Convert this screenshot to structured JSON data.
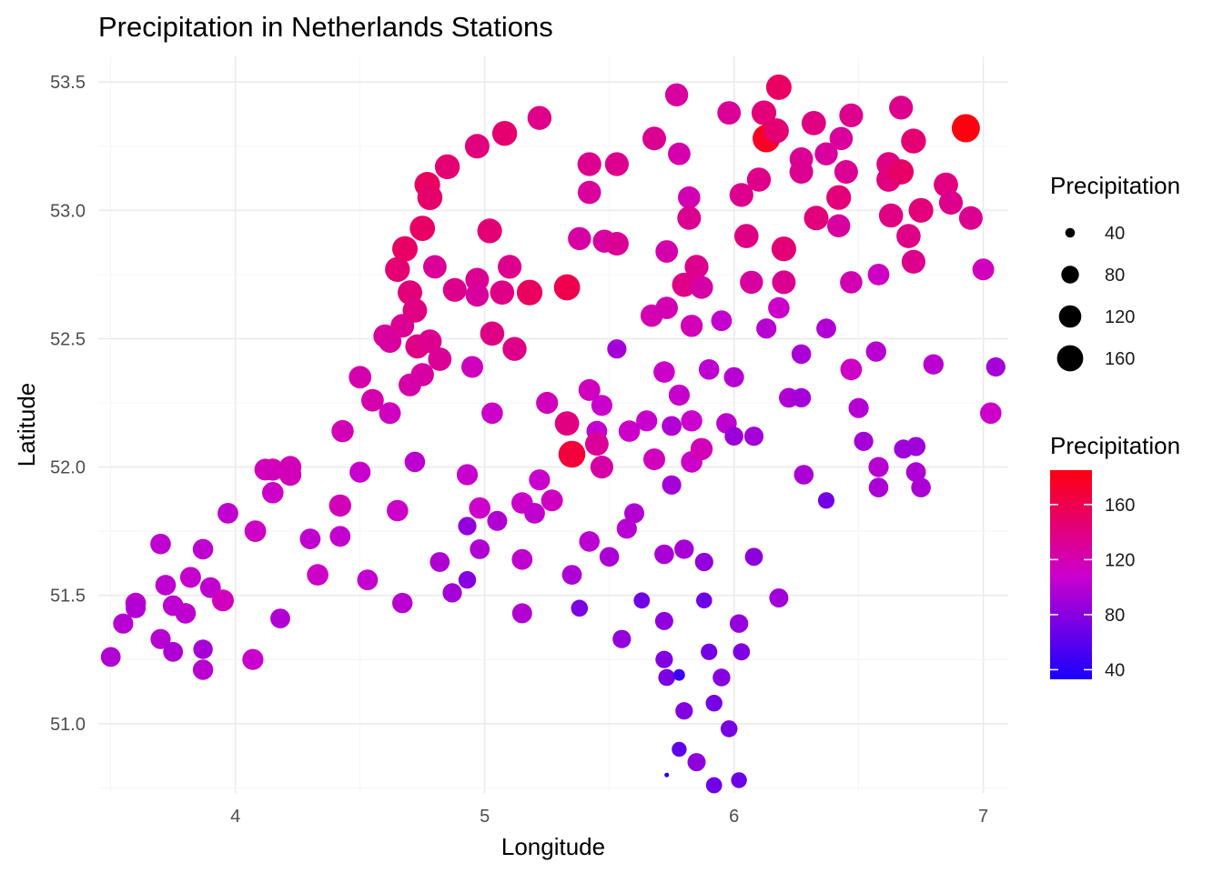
{
  "chart_data": {
    "type": "scatter",
    "title": "Precipitation in Netherlands Stations",
    "xlabel": "Longitude",
    "ylabel": "Latitude",
    "xlim": [
      3.45,
      7.1
    ],
    "ylim": [
      50.73,
      53.6
    ],
    "x_ticks": [
      "4",
      "5",
      "6",
      "7"
    ],
    "x_tick_values": [
      4,
      5,
      6,
      7
    ],
    "y_ticks": [
      "51.0",
      "51.5",
      "52.0",
      "52.5",
      "53.0",
      "53.5"
    ],
    "y_tick_values": [
      51.0,
      51.5,
      52.0,
      52.5,
      53.0,
      53.5
    ],
    "grid": true,
    "legend_position": "right",
    "size_legend": {
      "title": "Precipitation",
      "labels": [
        "40",
        "80",
        "120",
        "160"
      ],
      "values": [
        40,
        80,
        120,
        160
      ]
    },
    "color_legend": {
      "title": "Precipitation",
      "labels": [
        "40",
        "80",
        "120",
        "160"
      ],
      "values": [
        40,
        80,
        120,
        160
      ],
      "range": [
        33,
        185
      ],
      "low_color": "#1a00ff",
      "high_color": "#ff0010"
    },
    "points": [
      [
        3.5,
        51.26,
        97
      ],
      [
        3.55,
        51.39,
        100
      ],
      [
        3.6,
        51.47,
        102
      ],
      [
        3.6,
        51.45,
        98
      ],
      [
        3.7,
        51.33,
        100
      ],
      [
        3.7,
        51.7,
        103
      ],
      [
        3.72,
        51.54,
        103
      ],
      [
        3.75,
        51.28,
        96
      ],
      [
        3.75,
        51.46,
        103
      ],
      [
        3.8,
        51.43,
        103
      ],
      [
        3.82,
        51.57,
        106
      ],
      [
        3.87,
        51.29,
        93
      ],
      [
        3.87,
        51.21,
        101
      ],
      [
        3.87,
        51.68,
        103
      ],
      [
        3.9,
        51.53,
        104
      ],
      [
        3.95,
        51.48,
        115
      ],
      [
        3.97,
        51.82,
        104
      ],
      [
        4.07,
        51.25,
        108
      ],
      [
        4.08,
        51.75,
        112
      ],
      [
        4.12,
        51.99,
        115
      ],
      [
        4.15,
        51.99,
        116
      ],
      [
        4.15,
        51.9,
        110
      ],
      [
        4.18,
        51.41,
        97
      ],
      [
        4.22,
        52.0,
        118
      ],
      [
        4.22,
        51.97,
        117
      ],
      [
        4.3,
        51.72,
        104
      ],
      [
        4.33,
        51.58,
        111
      ],
      [
        4.42,
        51.85,
        118
      ],
      [
        4.42,
        51.73,
        105
      ],
      [
        4.43,
        52.14,
        117
      ],
      [
        4.5,
        51.98,
        107
      ],
      [
        4.5,
        52.35,
        122
      ],
      [
        4.53,
        51.56,
        105
      ],
      [
        4.55,
        52.26,
        121
      ],
      [
        4.6,
        52.51,
        128
      ],
      [
        4.62,
        52.49,
        127
      ],
      [
        4.62,
        52.21,
        114
      ],
      [
        4.65,
        51.83,
        110
      ],
      [
        4.65,
        52.77,
        145
      ],
      [
        4.67,
        51.47,
        101
      ],
      [
        4.67,
        52.55,
        132
      ],
      [
        4.68,
        52.85,
        151
      ],
      [
        4.7,
        52.68,
        142
      ],
      [
        4.7,
        52.32,
        123
      ],
      [
        4.72,
        52.02,
        102
      ],
      [
        4.72,
        52.61,
        139
      ],
      [
        4.73,
        52.47,
        138
      ],
      [
        4.75,
        52.93,
        150
      ],
      [
        4.75,
        52.36,
        126
      ],
      [
        4.77,
        53.1,
        153
      ],
      [
        4.78,
        53.05,
        148
      ],
      [
        4.78,
        52.49,
        133
      ],
      [
        4.8,
        52.78,
        130
      ],
      [
        4.82,
        52.42,
        131
      ],
      [
        4.82,
        51.63,
        97
      ],
      [
        4.85,
        53.17,
        145
      ],
      [
        4.88,
        52.69,
        135
      ],
      [
        4.87,
        51.51,
        92
      ],
      [
        4.93,
        51.97,
        107
      ],
      [
        4.93,
        51.77,
        85
      ],
      [
        4.93,
        51.56,
        80
      ],
      [
        4.95,
        52.39,
        115
      ],
      [
        4.97,
        53.25,
        141
      ],
      [
        4.97,
        52.73,
        132
      ],
      [
        4.98,
        51.84,
        110
      ],
      [
        4.98,
        51.68,
        97
      ],
      [
        4.97,
        52.67,
        127
      ],
      [
        5.02,
        52.92,
        144
      ],
      [
        5.03,
        52.52,
        138
      ],
      [
        5.03,
        52.21,
        110
      ],
      [
        5.05,
        51.79,
        98
      ],
      [
        5.07,
        52.68,
        137
      ],
      [
        5.08,
        53.3,
        146
      ],
      [
        5.1,
        52.78,
        135
      ],
      [
        5.12,
        52.46,
        136
      ],
      [
        5.15,
        51.86,
        110
      ],
      [
        5.15,
        51.64,
        104
      ],
      [
        5.15,
        51.43,
        98
      ],
      [
        5.18,
        52.68,
        153
      ],
      [
        5.2,
        51.82,
        104
      ],
      [
        5.22,
        53.36,
        136
      ],
      [
        5.22,
        51.95,
        108
      ],
      [
        5.25,
        52.25,
        116
      ],
      [
        5.27,
        51.87,
        114
      ],
      [
        5.33,
        52.7,
        160
      ],
      [
        5.33,
        52.17,
        140
      ],
      [
        5.35,
        52.05,
        168
      ],
      [
        5.35,
        51.58,
        96
      ],
      [
        5.38,
        52.89,
        126
      ],
      [
        5.38,
        51.45,
        75
      ],
      [
        5.42,
        53.18,
        134
      ],
      [
        5.42,
        53.07,
        128
      ],
      [
        5.42,
        52.3,
        115
      ],
      [
        5.42,
        51.71,
        102
      ],
      [
        5.45,
        52.14,
        105
      ],
      [
        5.45,
        52.09,
        130
      ],
      [
        5.47,
        52.24,
        108
      ],
      [
        5.47,
        52.0,
        124
      ],
      [
        5.48,
        52.88,
        126
      ],
      [
        5.5,
        51.65,
        95
      ],
      [
        5.53,
        52.87,
        132
      ],
      [
        5.53,
        53.18,
        134
      ],
      [
        5.53,
        52.46,
        92
      ],
      [
        5.55,
        51.33,
        85
      ],
      [
        5.57,
        51.76,
        100
      ],
      [
        5.58,
        52.14,
        110
      ],
      [
        5.6,
        51.82,
        98
      ],
      [
        5.63,
        51.48,
        70
      ],
      [
        5.65,
        52.18,
        107
      ],
      [
        5.67,
        52.59,
        120
      ],
      [
        5.68,
        53.28,
        133
      ],
      [
        5.68,
        52.03,
        115
      ],
      [
        5.72,
        52.37,
        110
      ],
      [
        5.72,
        51.66,
        95
      ],
      [
        5.72,
        51.4,
        84
      ],
      [
        5.72,
        51.25,
        78
      ],
      [
        5.73,
        52.84,
        121
      ],
      [
        5.73,
        52.62,
        120
      ],
      [
        5.73,
        51.18,
        75
      ],
      [
        5.73,
        50.8,
        33
      ],
      [
        5.75,
        52.16,
        97
      ],
      [
        5.75,
        51.93,
        92
      ],
      [
        5.77,
        53.45,
        127
      ],
      [
        5.78,
        51.19,
        47
      ],
      [
        5.78,
        53.22,
        122
      ],
      [
        5.78,
        52.28,
        107
      ],
      [
        5.78,
        50.9,
        62
      ],
      [
        5.8,
        52.71,
        137
      ],
      [
        5.8,
        51.68,
        93
      ],
      [
        5.8,
        51.05,
        78
      ],
      [
        5.82,
        53.05,
        119
      ],
      [
        5.82,
        52.97,
        133
      ],
      [
        5.83,
        52.55,
        118
      ],
      [
        5.83,
        52.18,
        109
      ],
      [
        5.83,
        52.02,
        110
      ],
      [
        5.85,
        52.78,
        135
      ],
      [
        5.85,
        50.85,
        83
      ],
      [
        5.87,
        52.7,
        124
      ],
      [
        5.87,
        52.07,
        118
      ],
      [
        5.88,
        51.63,
        85
      ],
      [
        5.88,
        51.48,
        69
      ],
      [
        5.9,
        52.38,
        103
      ],
      [
        5.9,
        51.28,
        72
      ],
      [
        5.92,
        50.76,
        70
      ],
      [
        5.92,
        51.08,
        73
      ],
      [
        5.95,
        52.57,
        105
      ],
      [
        5.95,
        51.18,
        80
      ],
      [
        5.97,
        52.17,
        103
      ],
      [
        5.98,
        50.98,
        74
      ],
      [
        5.98,
        53.38,
        130
      ],
      [
        6.0,
        52.35,
        100
      ],
      [
        6.0,
        52.12,
        88
      ],
      [
        6.02,
        50.78,
        68
      ],
      [
        6.02,
        51.39,
        86
      ],
      [
        6.03,
        51.28,
        76
      ],
      [
        6.03,
        53.06,
        134
      ],
      [
        6.05,
        52.9,
        138
      ],
      [
        6.07,
        52.72,
        127
      ],
      [
        6.08,
        52.12,
        92
      ],
      [
        6.08,
        51.65,
        82
      ],
      [
        6.1,
        53.12,
        136
      ],
      [
        6.12,
        53.38,
        143
      ],
      [
        6.13,
        53.28,
        177
      ],
      [
        6.13,
        52.54,
        100
      ],
      [
        6.17,
        53.31,
        145
      ],
      [
        6.18,
        52.62,
        110
      ],
      [
        6.18,
        51.49,
        91
      ],
      [
        6.18,
        53.48,
        152
      ],
      [
        6.2,
        52.85,
        144
      ],
      [
        6.2,
        52.72,
        133
      ],
      [
        6.22,
        52.27,
        97
      ],
      [
        6.27,
        53.2,
        131
      ],
      [
        6.27,
        53.15,
        133
      ],
      [
        6.27,
        52.44,
        95
      ],
      [
        6.27,
        52.27,
        92
      ],
      [
        6.28,
        51.97,
        95
      ],
      [
        6.32,
        53.34,
        139
      ],
      [
        6.33,
        52.97,
        142
      ],
      [
        6.37,
        53.22,
        127
      ],
      [
        6.37,
        52.54,
        97
      ],
      [
        6.37,
        51.87,
        72
      ],
      [
        6.42,
        53.05,
        143
      ],
      [
        6.42,
        52.94,
        127
      ],
      [
        6.43,
        53.28,
        128
      ],
      [
        6.45,
        53.15,
        132
      ],
      [
        6.47,
        53.37,
        135
      ],
      [
        6.47,
        52.72,
        120
      ],
      [
        6.47,
        52.38,
        112
      ],
      [
        6.5,
        52.23,
        99
      ],
      [
        6.52,
        52.1,
        92
      ],
      [
        6.57,
        52.45,
        101
      ],
      [
        6.58,
        52.75,
        112
      ],
      [
        6.58,
        52.0,
        100
      ],
      [
        6.58,
        51.92,
        95
      ],
      [
        6.62,
        53.18,
        138
      ],
      [
        6.62,
        53.12,
        140
      ],
      [
        6.63,
        52.98,
        138
      ],
      [
        6.67,
        53.15,
        150
      ],
      [
        6.67,
        53.4,
        135
      ],
      [
        6.68,
        52.07,
        90
      ],
      [
        6.7,
        52.9,
        137
      ],
      [
        6.72,
        53.27,
        145
      ],
      [
        6.72,
        52.8,
        135
      ],
      [
        6.73,
        52.08,
        90
      ],
      [
        6.73,
        51.98,
        96
      ],
      [
        6.75,
        53.0,
        143
      ],
      [
        6.75,
        51.92,
        95
      ],
      [
        6.8,
        52.4,
        101
      ],
      [
        6.85,
        53.1,
        140
      ],
      [
        6.87,
        53.03,
        135
      ],
      [
        6.93,
        53.32,
        185
      ],
      [
        6.95,
        52.97,
        133
      ],
      [
        7.0,
        52.77,
        115
      ],
      [
        7.03,
        52.21,
        110
      ],
      [
        7.05,
        52.39,
        92
      ]
    ]
  }
}
